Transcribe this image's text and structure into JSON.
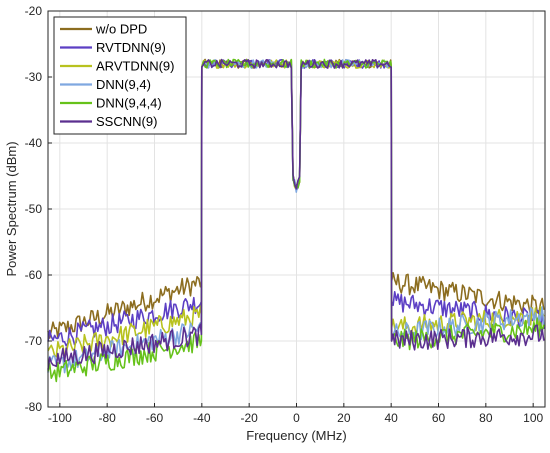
{
  "chart_data": {
    "type": "line",
    "xlabel": "Frequency (MHz)",
    "ylabel": "Power Spectrum (dBm)",
    "xlim": [
      -105,
      105
    ],
    "ylim": [
      -80,
      -20
    ],
    "xticks": [
      -100,
      -80,
      -60,
      -40,
      -20,
      0,
      20,
      40,
      60,
      80,
      100
    ],
    "yticks": [
      -80,
      -70,
      -60,
      -50,
      -40,
      -30,
      -20
    ],
    "grid": true,
    "legend_position": "top-left",
    "inband": {
      "lower_edge": -40,
      "upper_edge": 40,
      "level": -28,
      "notch_halfwidth": 1.5,
      "notch_depth": -47
    },
    "series": [
      {
        "name": "w/o DPD",
        "color": "#8c6d1f",
        "lower_band": [
          -69,
          -61
        ],
        "upper_band": [
          -61,
          -65
        ]
      },
      {
        "name": "RVTDNN(9)",
        "color": "#5c3fc4",
        "lower_band": [
          -70,
          -64
        ],
        "upper_band": [
          -64,
          -67
        ]
      },
      {
        "name": "ARVTDNN(9)",
        "color": "#b8c21f",
        "lower_band": [
          -72,
          -66
        ],
        "upper_band": [
          -68,
          -66
        ]
      },
      {
        "name": "DNN(9,4)",
        "color": "#7fa8e0",
        "lower_band": [
          -74,
          -68
        ],
        "upper_band": [
          -69,
          -66
        ]
      },
      {
        "name": "DNN(9,4,4)",
        "color": "#66c21a",
        "lower_band": [
          -75,
          -70
        ],
        "upper_band": [
          -70,
          -68
        ]
      },
      {
        "name": "SSCNN(9)",
        "color": "#5b2f8f",
        "lower_band": [
          -73,
          -69
        ],
        "upper_band": [
          -70,
          -69
        ]
      }
    ]
  }
}
